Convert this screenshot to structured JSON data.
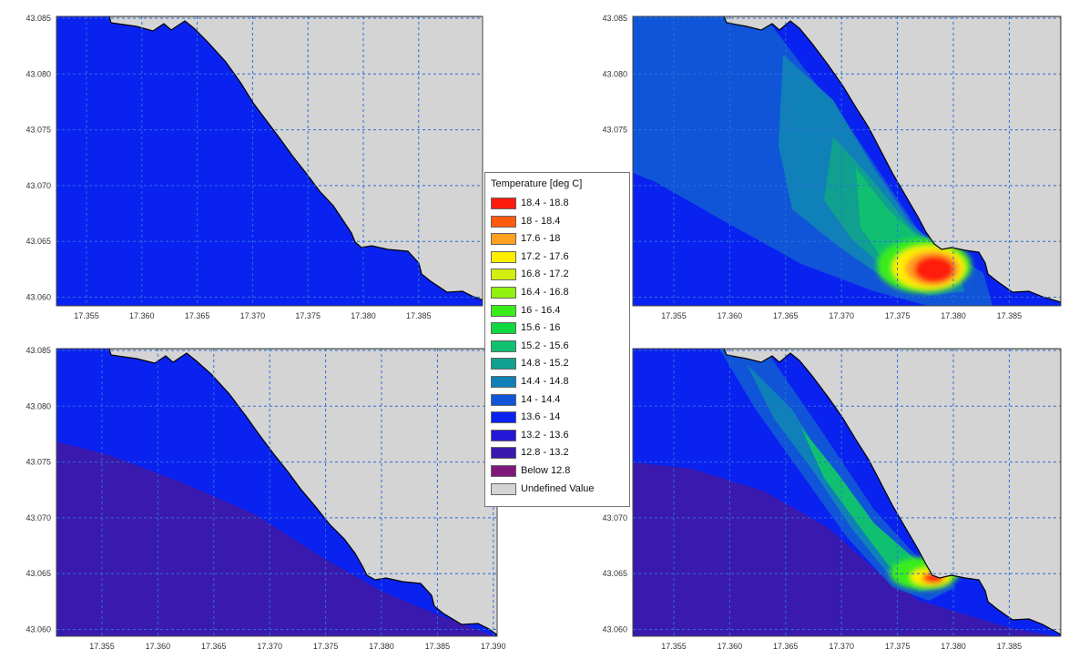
{
  "legend": {
    "title": "Temperature [deg C]",
    "items": [
      {
        "label": "18.4 - 18.8",
        "color": "#ff1a10"
      },
      {
        "label": "18 - 18.4",
        "color": "#ff5a10"
      },
      {
        "label": "17.6 - 18",
        "color": "#ffa020"
      },
      {
        "label": "17.2 - 17.6",
        "color": "#ffee00"
      },
      {
        "label": "16.8 - 17.2",
        "color": "#d2ee10"
      },
      {
        "label": "16.4 - 16.8",
        "color": "#90f010"
      },
      {
        "label": "16 - 16.4",
        "color": "#3aec1a"
      },
      {
        "label": "15.6 - 16",
        "color": "#10d840"
      },
      {
        "label": "15.2 - 15.6",
        "color": "#10c070"
      },
      {
        "label": "14.8 - 15.2",
        "color": "#10a090"
      },
      {
        "label": "14.4 - 14.8",
        "color": "#1080b8"
      },
      {
        "label": "14 - 14.4",
        "color": "#1055d8"
      },
      {
        "label": "13.6 - 14",
        "color": "#0a22f0"
      },
      {
        "label": "13.2 - 13.6",
        "color": "#2418d8"
      },
      {
        "label": "12.8 - 13.2",
        "color": "#3a1aae"
      },
      {
        "label": "Below 12.8",
        "color": "#80187c"
      },
      {
        "label": "Undefined Value",
        "color": "#d4d4d4"
      }
    ]
  },
  "axes": {
    "x_ticks": [
      "17.355",
      "17.360",
      "17.365",
      "17.370",
      "17.375",
      "17.380",
      "17.385",
      "17.390"
    ],
    "y_ticks": [
      "43.085",
      "43.080",
      "43.075",
      "43.070",
      "43.065",
      "43.060"
    ]
  },
  "colors": {
    "land": "#d4d4d4",
    "grid": "#2a6fd6",
    "sea_base": "#0a22f0",
    "deep": "#3a1aae"
  },
  "panels": [
    {
      "id": "top-left",
      "x_ticks_visible": 7,
      "y_ticks_visible": 6
    },
    {
      "id": "top-right",
      "x_ticks_visible": 8,
      "y_ticks_visible": 6
    },
    {
      "id": "bottom-left",
      "x_ticks_visible": 8,
      "y_ticks_visible": 6
    },
    {
      "id": "bottom-right",
      "x_ticks_visible": 8,
      "y_ticks_visible": 3
    }
  ]
}
